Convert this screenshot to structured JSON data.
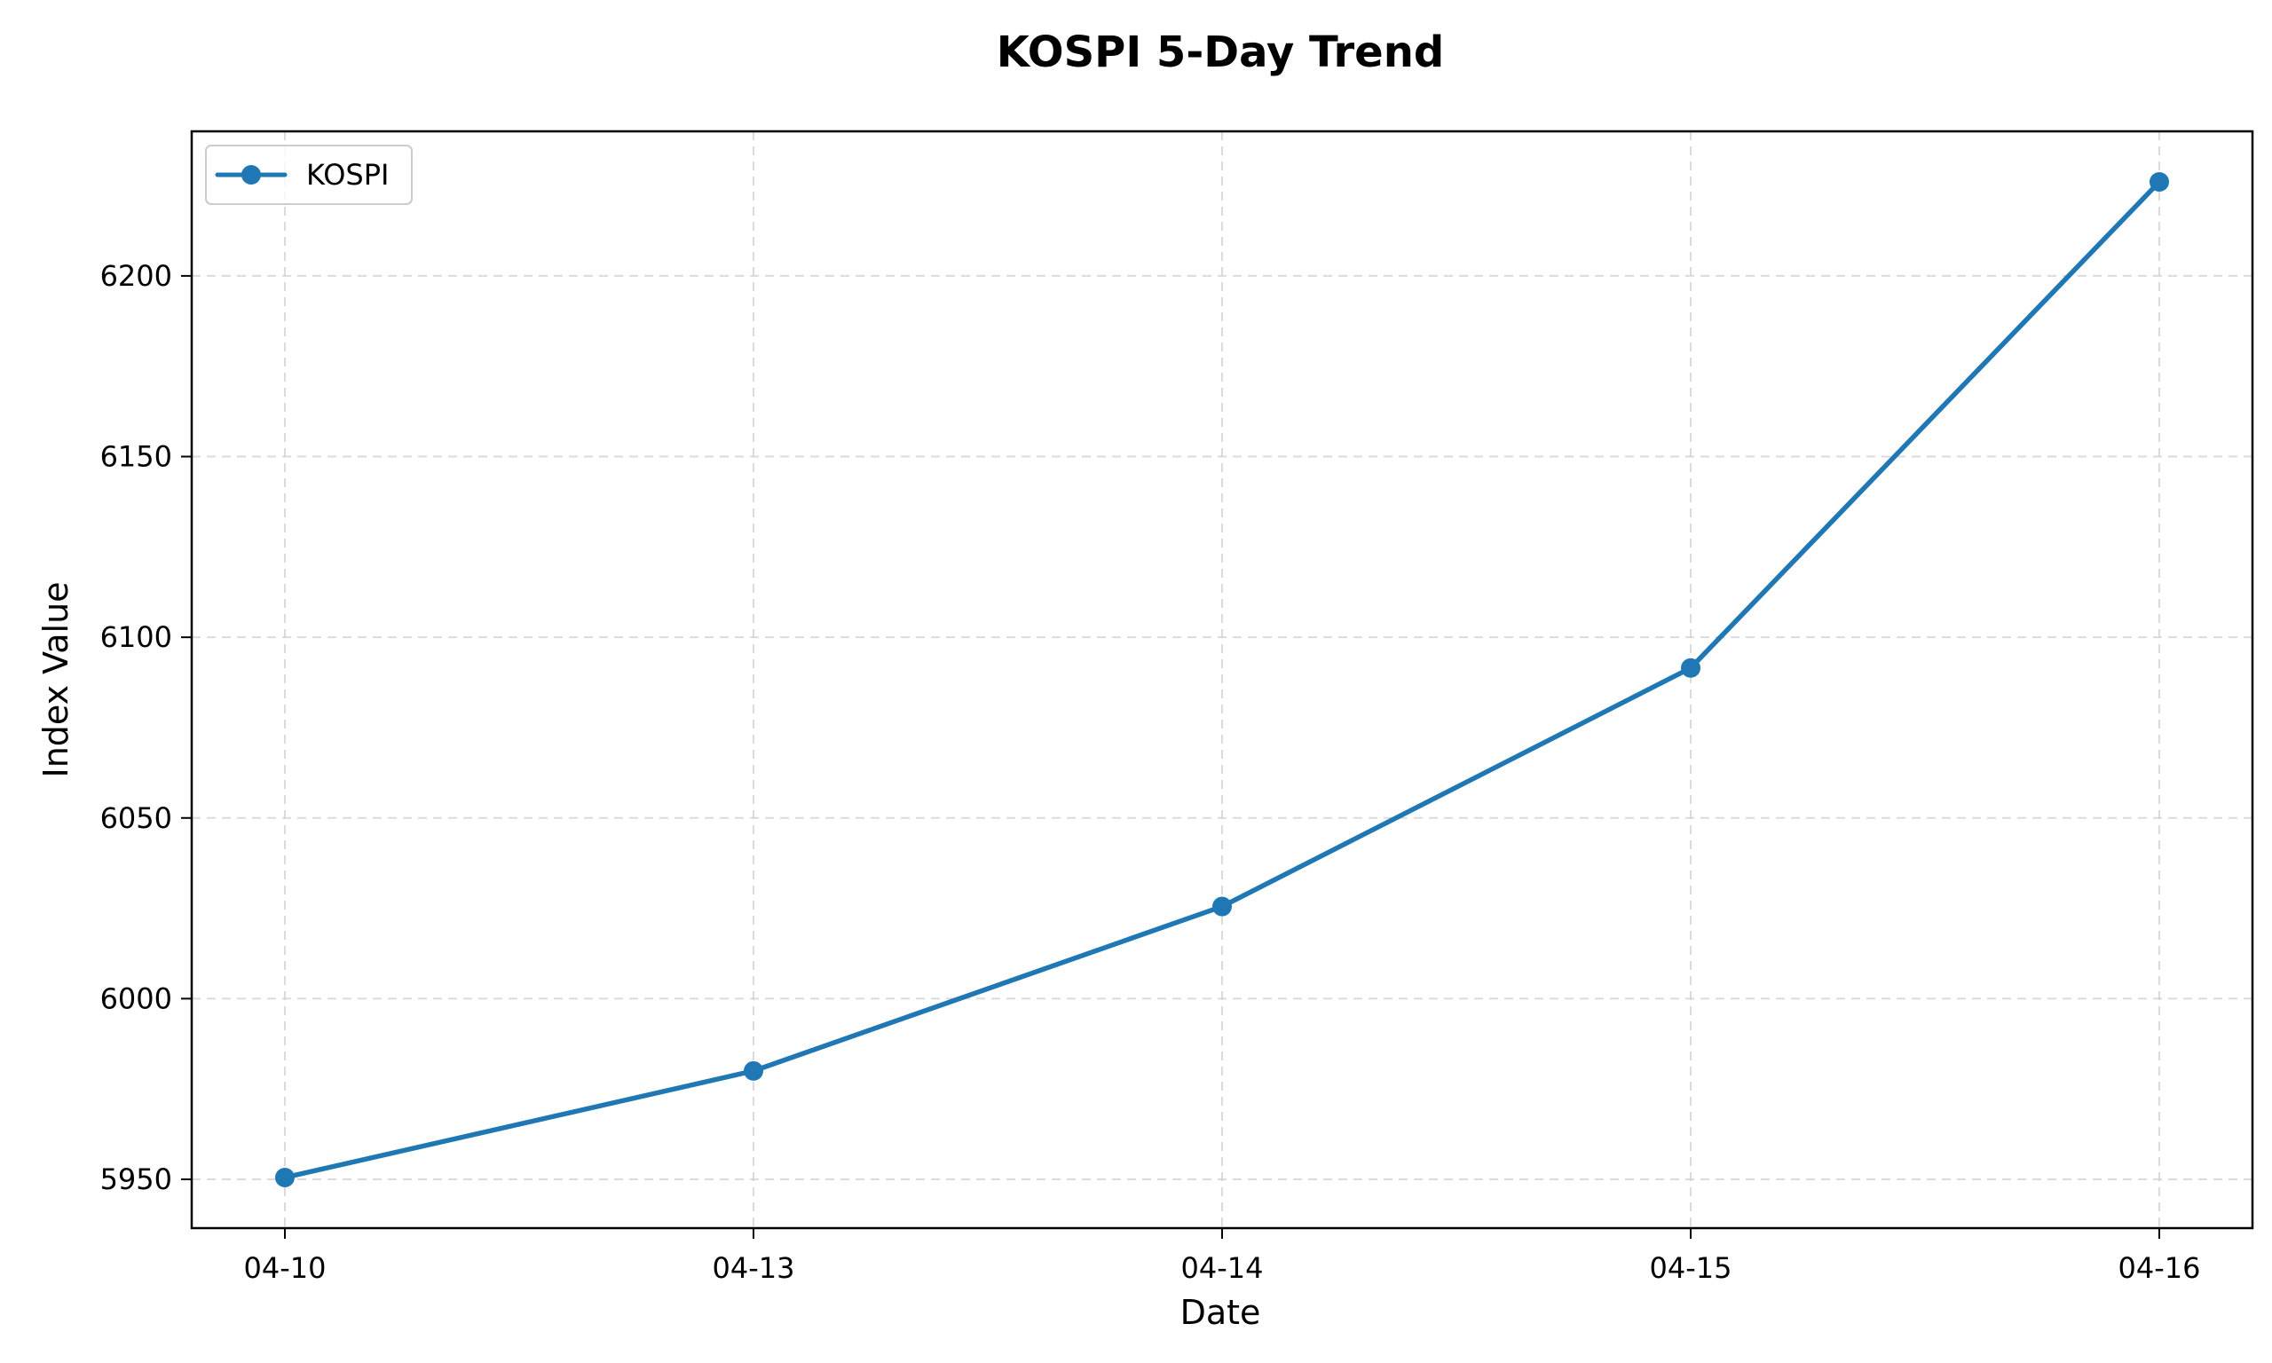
{
  "chart_data": {
    "type": "line",
    "title": "KOSPI 5-Day Trend",
    "xlabel": "Date",
    "ylabel": "Index Value",
    "categories": [
      "04-10",
      "04-13",
      "04-14",
      "04-15",
      "04-16"
    ],
    "series": [
      {
        "name": "KOSPI",
        "color": "#1f77b4",
        "values": [
          5950.5,
          5980.0,
          6025.5,
          6091.5,
          6226.0
        ]
      }
    ],
    "yticks": [
      5950,
      6000,
      6050,
      6100,
      6150,
      6200
    ],
    "ylim": [
      5936.5,
      6240.0
    ],
    "grid": true,
    "legend_position": "top-left"
  }
}
